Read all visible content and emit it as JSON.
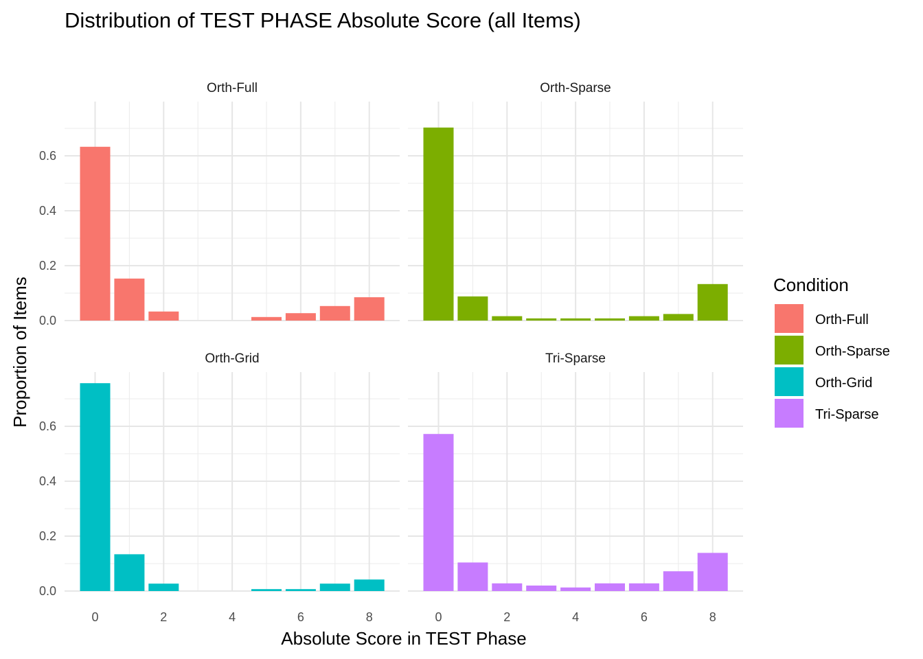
{
  "chart_data": {
    "type": "bar",
    "title": "Distribution of TEST PHASE Absolute Score (all Items)",
    "xlabel": "Absolute Score in TEST Phase",
    "ylabel": "Proportion of Items",
    "x": [
      0,
      1,
      2,
      3,
      4,
      5,
      6,
      7,
      8
    ],
    "x_ticks": [
      "0",
      "2",
      "4",
      "6",
      "8"
    ],
    "y_ticks": [
      "0.0",
      "0.2",
      "0.4",
      "0.6"
    ],
    "ylim": [
      0,
      0.75
    ],
    "grid": true,
    "legend": {
      "title": "Condition",
      "placement": "right",
      "entries": [
        "Orth-Full",
        "Orth-Sparse",
        "Orth-Grid",
        "Tri-Sparse"
      ]
    },
    "panels": [
      {
        "name": "Orth-Full",
        "color": "#F8766D",
        "values": [
          0.633,
          0.153,
          0.033,
          0,
          0,
          0.013,
          0.027,
          0.053,
          0.085
        ]
      },
      {
        "name": "Orth-Sparse",
        "color": "#7CAE00",
        "values": [
          0.703,
          0.088,
          0.016,
          0.008,
          0.008,
          0.008,
          0.016,
          0.024,
          0.133
        ]
      },
      {
        "name": "Orth-Grid",
        "color": "#00BFC4",
        "values": [
          0.757,
          0.134,
          0.027,
          0,
          0,
          0.007,
          0.007,
          0.027,
          0.042
        ]
      },
      {
        "name": "Tri-Sparse",
        "color": "#C77CFF",
        "values": [
          0.572,
          0.104,
          0.028,
          0.02,
          0.013,
          0.028,
          0.028,
          0.072,
          0.139
        ]
      }
    ]
  }
}
